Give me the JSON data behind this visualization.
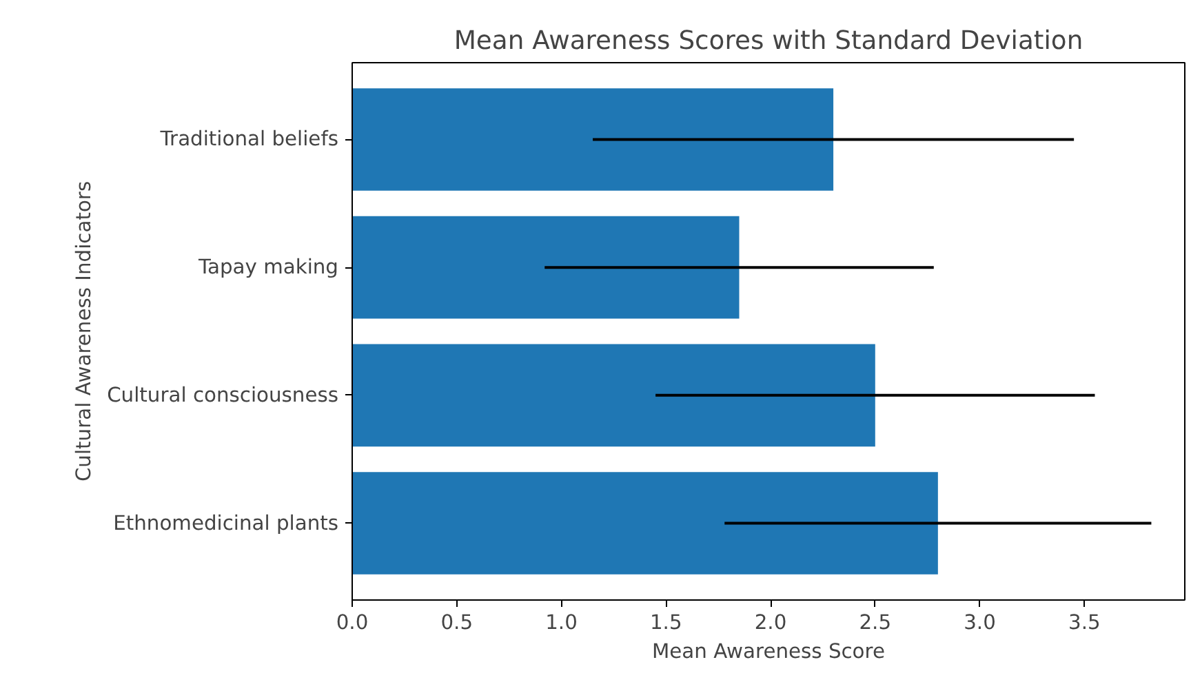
{
  "chart_data": {
    "type": "bar",
    "orientation": "horizontal",
    "title": "Mean Awareness Scores with Standard Deviation",
    "xlabel": "Mean Awareness Score",
    "ylabel": "Cultural Awareness Indicators",
    "categories": [
      "Traditional beliefs",
      "Tapay making",
      "Cultural consciousness",
      "Ethnomedicinal plants"
    ],
    "values": [
      2.3,
      1.85,
      2.5,
      2.8
    ],
    "errors": [
      1.15,
      0.93,
      1.05,
      1.02
    ],
    "color": "#1f77b4",
    "xlim": [
      0,
      3.98
    ],
    "xticks": [
      {
        "value": 0,
        "label": "0.0"
      },
      {
        "value": 0.5,
        "label": "0.5"
      },
      {
        "value": 1,
        "label": "1.0"
      },
      {
        "value": 1.5,
        "label": "1.5"
      },
      {
        "value": 2,
        "label": "2.0"
      },
      {
        "value": 2.5,
        "label": "2.5"
      },
      {
        "value": 3,
        "label": "3.0"
      },
      {
        "value": 3.5,
        "label": "3.5"
      }
    ],
    "grid": false
  }
}
